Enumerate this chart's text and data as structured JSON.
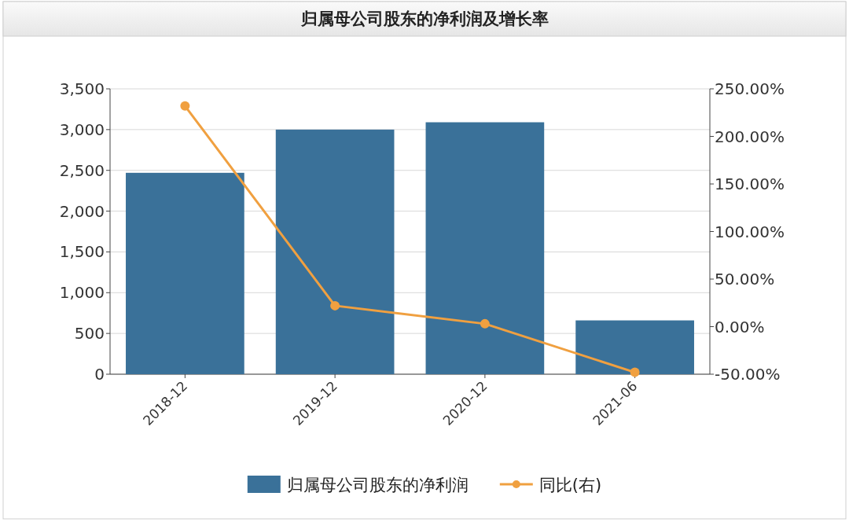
{
  "chart_data": {
    "type": "bar",
    "title": "归属母公司股东的净利润及增长率",
    "categories": [
      "2018-12",
      "2019-12",
      "2020-12",
      "2021-06"
    ],
    "series": [
      {
        "name": "归属母公司股东的净利润",
        "color": "#3a7199",
        "values": [
          2470,
          3000,
          3090,
          660
        ]
      },
      {
        "name": "同比(右)",
        "type": "line",
        "axis": "y2",
        "color": "#f0a040",
        "marker": "circle",
        "values": [
          232,
          22,
          3,
          -48
        ]
      }
    ],
    "ylim": [
      0,
      3500
    ],
    "yticks": [
      0,
      {
        "value": 500,
        "label": "500"
      },
      {
        "value": 1000,
        "label": "1,000"
      },
      {
        "value": 1500,
        "label": "1,500"
      },
      {
        "value": 2000,
        "label": "2,000"
      },
      {
        "value": 2500,
        "label": "2,500"
      },
      {
        "value": 3000,
        "label": "3,000"
      },
      {
        "value": 3500,
        "label": "3,500"
      }
    ],
    "y2lim": [
      -50,
      250
    ],
    "y2ticks": [
      {
        "value": -50,
        "label": "-50.00%"
      },
      {
        "value": 0,
        "label": "0.00%"
      },
      {
        "value": 50,
        "label": "50.00%"
      },
      {
        "value": 100,
        "label": "100.00%"
      },
      {
        "value": 150,
        "label": "150.00%"
      },
      {
        "value": 200,
        "label": "200.00%"
      },
      {
        "value": 250,
        "label": "250.00%"
      }
    ],
    "grid": "y",
    "legend": "bottom"
  }
}
